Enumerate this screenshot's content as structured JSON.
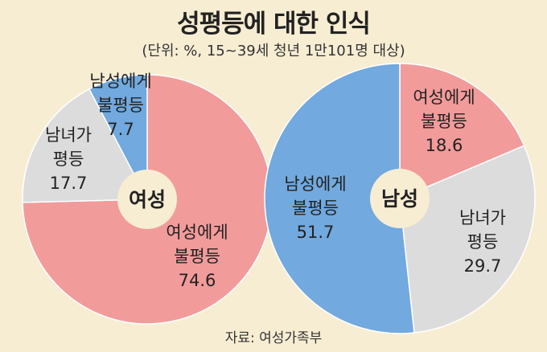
{
  "title": "성평등에 대한 인식",
  "subtitle": "(단위: %, 15~39세 청년 1만101명 대상)",
  "source": "자료: 여성가족부",
  "colors": {
    "male_disadvantaged": "#72a9de",
    "female_disadvantaged": "#f29b9b",
    "equal": "#dcdcdc",
    "background": "#f7edd3",
    "center": "#f7edd3"
  },
  "chart_data": [
    {
      "type": "pie",
      "center_label": "여성",
      "slices": [
        {
          "label": [
            "여성에게",
            "불평등"
          ],
          "value": 74.6,
          "key": "female_disadvantaged"
        },
        {
          "label": [
            "남녀가",
            "평등"
          ],
          "value": 17.7,
          "key": "equal"
        },
        {
          "label": [
            "남성에게",
            "불평등"
          ],
          "value": 7.7,
          "key": "male_disadvantaged"
        }
      ]
    },
    {
      "type": "pie",
      "center_label": "남성",
      "slices": [
        {
          "label": [
            "여성에게",
            "불평등"
          ],
          "value": 18.6,
          "key": "female_disadvantaged"
        },
        {
          "label": [
            "남녀가",
            "평등"
          ],
          "value": 29.7,
          "key": "equal"
        },
        {
          "label": [
            "남성에게",
            "불평등"
          ],
          "value": 51.7,
          "key": "male_disadvantaged"
        }
      ]
    }
  ]
}
